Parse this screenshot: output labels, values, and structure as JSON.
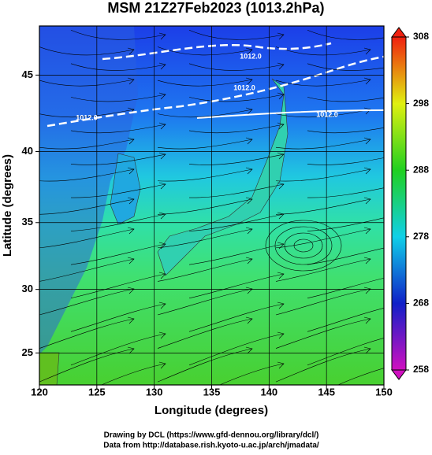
{
  "chart_data": {
    "type": "vector-field-map",
    "title": "MSM 21Z27Feb2023 (1013.2hPa)",
    "x_label": "Longitude (degrees)",
    "y_label": "Latitude  (degrees)",
    "xlim": [
      120,
      150
    ],
    "xticks": [
      120,
      125,
      130,
      135,
      140,
      145,
      150
    ],
    "ylim": [
      22.4,
      48
    ],
    "yticks": [
      25,
      30,
      35,
      40,
      45
    ],
    "yscale": "mercator",
    "grid": true,
    "colorbar": {
      "lim": [
        258,
        308
      ],
      "ticks": [
        258,
        268,
        278,
        288,
        298,
        308
      ]
    },
    "contour_labels": [
      "1012.0",
      "1012.0",
      "1012.0",
      "1012.0"
    ],
    "footer": [
      "Drawing by DCL (https://www.gfd-dennou.org/library/dcl/)",
      "Data from http://database.rish.kyoto-u.ac.jp/arch/jmadata/"
    ]
  }
}
